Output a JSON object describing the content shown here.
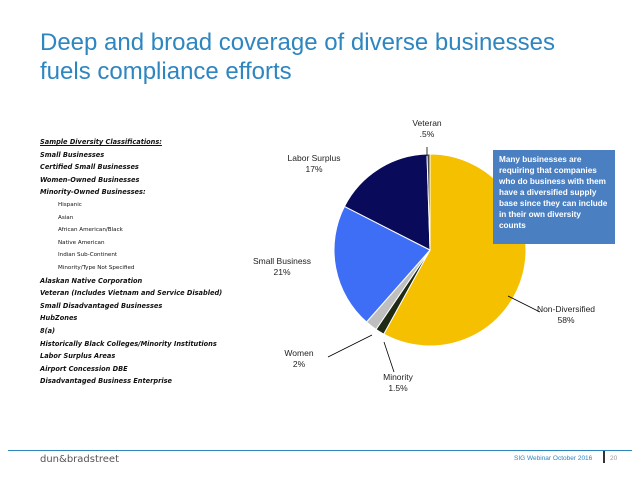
{
  "title": {
    "line1": "Deep and broad coverage of diverse businesses",
    "line2": "fuels compliance efforts"
  },
  "classifications": [
    {
      "text": "Sample Diversity Classifications:",
      "level": "heading"
    },
    {
      "text": "Small Businesses",
      "level": "main"
    },
    {
      "text": "Certified Small Businesses",
      "level": "main"
    },
    {
      "text": "Women-Owned Businesses",
      "level": "main"
    },
    {
      "text": "Minority-Owned Businesses:",
      "level": "main"
    },
    {
      "text": "Hispanic",
      "level": "sub"
    },
    {
      "text": "Asian",
      "level": "sub"
    },
    {
      "text": "African American/Black",
      "level": "sub"
    },
    {
      "text": "Native American",
      "level": "sub"
    },
    {
      "text": "Indian Sub-Continent",
      "level": "sub"
    },
    {
      "text": "Minority/Type Not Specified",
      "level": "sub"
    },
    {
      "text": "Alaskan Native Corporation",
      "level": "main"
    },
    {
      "text": "Veteran (Includes Vietnam and Service Disabled)",
      "level": "main"
    },
    {
      "text": "Small Disadvantaged Businesses",
      "level": "main"
    },
    {
      "text": "HubZones",
      "level": "main"
    },
    {
      "text": "8(a)",
      "level": "main"
    },
    {
      "text": "Historically Black Colleges/Minority Institutions",
      "level": "main"
    },
    {
      "text": "Labor Surplus Areas",
      "level": "main"
    },
    {
      "text": "Airport Concession DBE",
      "level": "main"
    },
    {
      "text": "Disadvantaged Business Enterprise",
      "level": "main"
    }
  ],
  "chart_data": {
    "type": "pie",
    "title": "",
    "slices": [
      {
        "label": "Non-Diversified",
        "value_label": "58%",
        "value": 58,
        "color": "#f5c000"
      },
      {
        "label": "Minority",
        "value_label": "1.5%",
        "value": 1.5,
        "color": "#1f2a14"
      },
      {
        "label": "Women",
        "value_label": "2%",
        "value": 2,
        "color": "#bfbfbf"
      },
      {
        "label": "Small Business",
        "value_label": "21%",
        "value": 21,
        "color": "#3d6ef5"
      },
      {
        "label": "Labor Surplus",
        "value_label": "17%",
        "value": 17,
        "color": "#0a0a5a"
      },
      {
        "label": "Veteran",
        "value_label": ".5%",
        "value": 0.5,
        "color": "#4a4a4a"
      }
    ],
    "start_angle_deg": 0,
    "direction": "clockwise"
  },
  "callout": "Many businesses are requiring that companies who do business with them have a diversified supply base since they can include in their own diversity counts",
  "footer": {
    "logo": "dun&bradstreet",
    "event": "SIG Webinar October 2016",
    "page": "20"
  },
  "colors": {
    "title": "#2e86c1",
    "callout_bg": "#4a7fc1",
    "footer_line": "#2e86c1"
  }
}
